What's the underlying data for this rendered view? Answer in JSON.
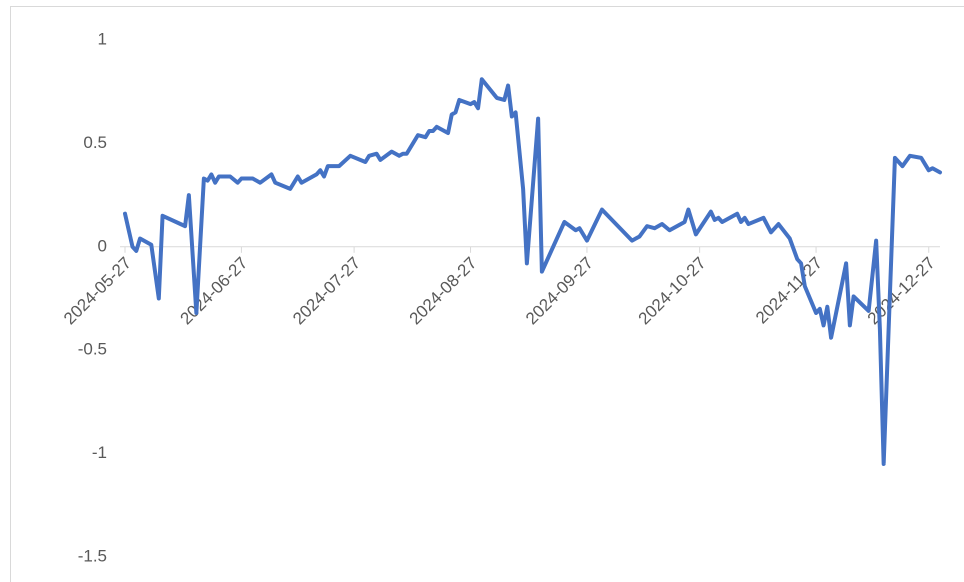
{
  "chart_data": {
    "type": "line",
    "x": [
      "2024-05-27",
      "2024-05-29",
      "2024-05-30",
      "2024-05-31",
      "2024-06-03",
      "2024-06-05",
      "2024-06-06",
      "2024-06-12",
      "2024-06-13",
      "2024-06-15",
      "2024-06-17",
      "2024-06-18",
      "2024-06-19",
      "2024-06-20",
      "2024-06-21",
      "2024-06-24",
      "2024-06-26",
      "2024-06-27",
      "2024-06-30",
      "2024-07-02",
      "2024-07-05",
      "2024-07-06",
      "2024-07-10",
      "2024-07-12",
      "2024-07-13",
      "2024-07-17",
      "2024-07-18",
      "2024-07-19",
      "2024-07-20",
      "2024-07-23",
      "2024-07-26",
      "2024-07-30",
      "2024-07-31",
      "2024-08-02",
      "2024-08-03",
      "2024-08-06",
      "2024-08-08",
      "2024-08-09",
      "2024-08-10",
      "2024-08-13",
      "2024-08-15",
      "2024-08-16",
      "2024-08-17",
      "2024-08-18",
      "2024-08-21",
      "2024-08-22",
      "2024-08-23",
      "2024-08-24",
      "2024-08-27",
      "2024-08-28",
      "2024-08-29",
      "2024-08-30",
      "2024-09-03",
      "2024-09-05",
      "2024-09-06",
      "2024-09-07",
      "2024-09-08",
      "2024-09-10",
      "2024-09-11",
      "2024-09-14",
      "2024-09-15",
      "2024-09-21",
      "2024-09-24",
      "2024-09-25",
      "2024-09-27",
      "2024-10-01",
      "2024-10-09",
      "2024-10-11",
      "2024-10-13",
      "2024-10-15",
      "2024-10-17",
      "2024-10-19",
      "2024-10-23",
      "2024-10-24",
      "2024-10-26",
      "2024-10-30",
      "2024-10-31",
      "2024-11-01",
      "2024-11-02",
      "2024-11-06",
      "2024-11-07",
      "2024-11-08",
      "2024-11-09",
      "2024-11-13",
      "2024-11-15",
      "2024-11-17",
      "2024-11-20",
      "2024-11-22",
      "2024-11-23",
      "2024-11-24",
      "2024-11-27",
      "2024-11-28",
      "2024-11-29",
      "2024-11-30",
      "2024-12-01",
      "2024-12-05",
      "2024-12-06",
      "2024-12-07",
      "2024-12-11",
      "2024-12-13",
      "2024-12-14",
      "2024-12-15",
      "2024-12-18",
      "2024-12-20",
      "2024-12-22",
      "2024-12-25",
      "2024-12-27",
      "2024-12-28",
      "2024-12-30"
    ],
    "series": [
      {
        "color": "#4472c4",
        "values": [
          0.16,
          0.0,
          -0.02,
          0.04,
          0.01,
          -0.25,
          0.15,
          0.1,
          0.25,
          -0.32,
          0.33,
          0.32,
          0.35,
          0.31,
          0.34,
          0.34,
          0.31,
          0.33,
          0.33,
          0.31,
          0.35,
          0.31,
          0.28,
          0.34,
          0.31,
          0.35,
          0.37,
          0.34,
          0.39,
          0.39,
          0.44,
          0.41,
          0.44,
          0.45,
          0.42,
          0.46,
          0.44,
          0.45,
          0.45,
          0.54,
          0.53,
          0.56,
          0.56,
          0.58,
          0.55,
          0.64,
          0.65,
          0.71,
          0.69,
          0.7,
          0.67,
          0.81,
          0.72,
          0.71,
          0.78,
          0.63,
          0.65,
          0.28,
          -0.08,
          0.62,
          -0.12,
          0.12,
          0.08,
          0.09,
          0.03,
          0.18,
          0.03,
          0.05,
          0.1,
          0.09,
          0.11,
          0.08,
          0.12,
          0.18,
          0.06,
          0.17,
          0.13,
          0.14,
          0.12,
          0.16,
          0.12,
          0.14,
          0.11,
          0.14,
          0.07,
          0.11,
          0.04,
          -0.06,
          -0.08,
          -0.19,
          -0.32,
          -0.3,
          -0.38,
          -0.29,
          -0.44,
          -0.08,
          -0.38,
          -0.24,
          -0.31,
          0.03,
          -0.4,
          -1.05,
          0.43,
          0.39,
          0.44,
          0.43,
          0.37,
          0.38,
          0.36
        ]
      }
    ],
    "xlim": [
      "2024-05-27",
      "2024-12-30"
    ],
    "xticks": [
      "2024-05-27",
      "2024-06-27",
      "2024-07-27",
      "2024-08-27",
      "2024-09-27",
      "2024-10-27",
      "2024-11-27",
      "2024-12-27"
    ],
    "ylim": [
      -1.5,
      1
    ],
    "yticks": [
      1,
      0.5,
      0,
      -0.5,
      -1,
      -1.5
    ]
  }
}
